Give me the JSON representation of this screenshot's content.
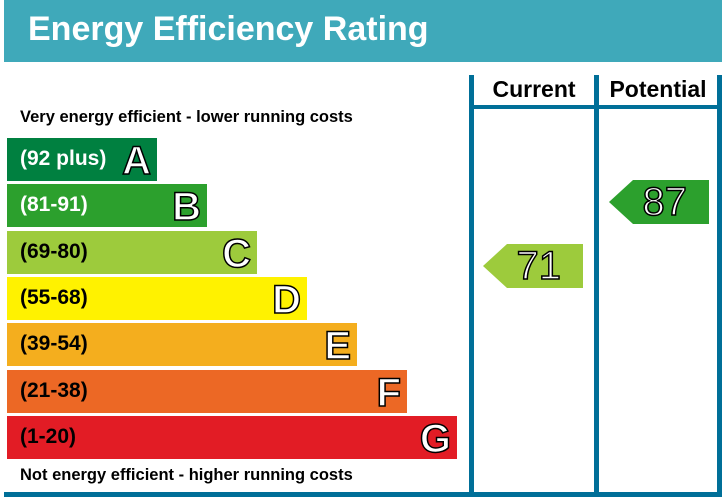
{
  "title": "Energy Efficiency Rating",
  "columns": {
    "current": "Current",
    "potential": "Potential"
  },
  "top_note": "Very energy efficient - lower running costs",
  "bottom_note": "Not energy efficient - higher running costs",
  "colors": {
    "header": "#3fa9ba",
    "lines": "#006f98"
  },
  "chart_data": {
    "type": "bar",
    "bands": [
      {
        "letter": "A",
        "range": "(92 plus)",
        "color": "#008040",
        "text_color": "#ffffff"
      },
      {
        "letter": "B",
        "range": "(81-91)",
        "color": "#2ca02d",
        "text_color": "#ffffff"
      },
      {
        "letter": "C",
        "range": "(69-80)",
        "color": "#9dcb3c",
        "text_color": "#000000"
      },
      {
        "letter": "D",
        "range": "(55-68)",
        "color": "#fff200",
        "text_color": "#000000"
      },
      {
        "letter": "E",
        "range": "(39-54)",
        "color": "#f4ae1e",
        "text_color": "#000000"
      },
      {
        "letter": "F",
        "range": "(21-38)",
        "color": "#ec6825",
        "text_color": "#000000"
      },
      {
        "letter": "G",
        "range": "(1-20)",
        "color": "#e21c25",
        "text_color": "#000000"
      }
    ],
    "current": {
      "value": "71",
      "band": "C",
      "color": "#9dcb3c"
    },
    "potential": {
      "value": "87",
      "band": "B",
      "color": "#2ca02d"
    }
  }
}
